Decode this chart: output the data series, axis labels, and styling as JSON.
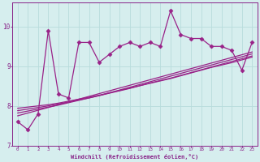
{
  "x_values": [
    0,
    1,
    2,
    3,
    4,
    5,
    6,
    7,
    8,
    9,
    10,
    11,
    12,
    13,
    14,
    15,
    16,
    17,
    18,
    19,
    20,
    21,
    22,
    23
  ],
  "main_line": [
    7.6,
    7.4,
    7.8,
    9.9,
    8.3,
    8.2,
    9.6,
    9.6,
    9.1,
    9.3,
    9.5,
    9.6,
    9.5,
    9.6,
    9.5,
    10.4,
    9.8,
    9.7,
    9.7,
    9.5,
    9.5,
    9.4,
    8.9,
    9.6
  ],
  "line2": [
    7.75,
    7.82,
    7.89,
    7.96,
    8.03,
    8.1,
    8.17,
    8.24,
    8.31,
    8.38,
    8.45,
    8.52,
    8.59,
    8.66,
    8.73,
    8.8,
    8.87,
    8.94,
    9.01,
    9.08,
    9.15,
    9.22,
    9.29,
    9.36
  ],
  "line3": [
    7.82,
    7.87,
    7.92,
    7.97,
    8.02,
    8.08,
    8.14,
    8.2,
    8.26,
    8.33,
    8.4,
    8.47,
    8.54,
    8.61,
    8.68,
    8.75,
    8.82,
    8.89,
    8.96,
    9.03,
    9.1,
    9.17,
    9.24,
    9.31
  ],
  "line4": [
    7.88,
    7.92,
    7.96,
    8.0,
    8.05,
    8.1,
    8.15,
    8.2,
    8.26,
    8.32,
    8.38,
    8.44,
    8.51,
    8.58,
    8.64,
    8.7,
    8.77,
    8.84,
    8.91,
    8.98,
    9.05,
    9.12,
    9.19,
    9.26
  ],
  "line5": [
    7.94,
    7.97,
    8.0,
    8.03,
    8.07,
    8.12,
    8.17,
    8.22,
    8.27,
    8.33,
    8.39,
    8.45,
    8.51,
    8.57,
    8.63,
    8.69,
    8.76,
    8.83,
    8.9,
    8.97,
    9.03,
    9.09,
    9.16,
    9.23
  ],
  "line_color": "#992288",
  "bg_color": "#d6eeee",
  "grid_color": "#b8dcdc",
  "axis_color": "#882288",
  "xlabel": "Windchill (Refroidissement éolien,°C)",
  "ylim": [
    7.0,
    10.6
  ],
  "xlim": [
    -0.5,
    23.5
  ],
  "yticks": [
    7,
    8,
    9,
    10
  ],
  "xticks": [
    0,
    1,
    2,
    3,
    4,
    5,
    6,
    7,
    8,
    9,
    10,
    11,
    12,
    13,
    14,
    15,
    16,
    17,
    18,
    19,
    20,
    21,
    22,
    23
  ],
  "marker": "D",
  "markersize": 2.5,
  "linewidth": 0.9
}
